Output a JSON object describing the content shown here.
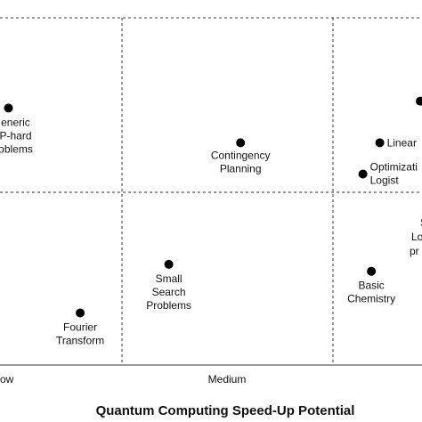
{
  "chart_data": {
    "type": "scatter",
    "title": "",
    "xlabel": "Quantum Computing Speed-Up Potential",
    "ylabel": "",
    "x_ticks": [
      "ow",
      "Medium"
    ],
    "grid": true,
    "colors": {
      "point": "#000000",
      "grid": "#333333",
      "text": "#111111"
    },
    "points": [
      {
        "label": [
          "eneric",
          "P-hard",
          "oblems"
        ],
        "x": 0.02,
        "y": 0.74
      },
      {
        "label": [
          "Contingency",
          "Planning"
        ],
        "x": 0.57,
        "y": 0.64
      },
      {
        "label": [
          "Linear"
        ],
        "x": 0.9,
        "y": 0.64
      },
      {
        "label": [
          "Optimizati",
          "Logist"
        ],
        "x": 0.86,
        "y": 0.55
      },
      {
        "label": [],
        "x": 1.0,
        "y": 0.76
      },
      {
        "label": [
          "Small",
          "Search",
          "Problems"
        ],
        "x": 0.4,
        "y": 0.29
      },
      {
        "label": [
          "Fourier",
          "Transform"
        ],
        "x": 0.19,
        "y": 0.15
      },
      {
        "label": [
          "Basic",
          "Chemistry"
        ],
        "x": 0.88,
        "y": 0.27
      }
    ],
    "edge_labels": [
      "S",
      "Lo",
      "pr"
    ]
  }
}
